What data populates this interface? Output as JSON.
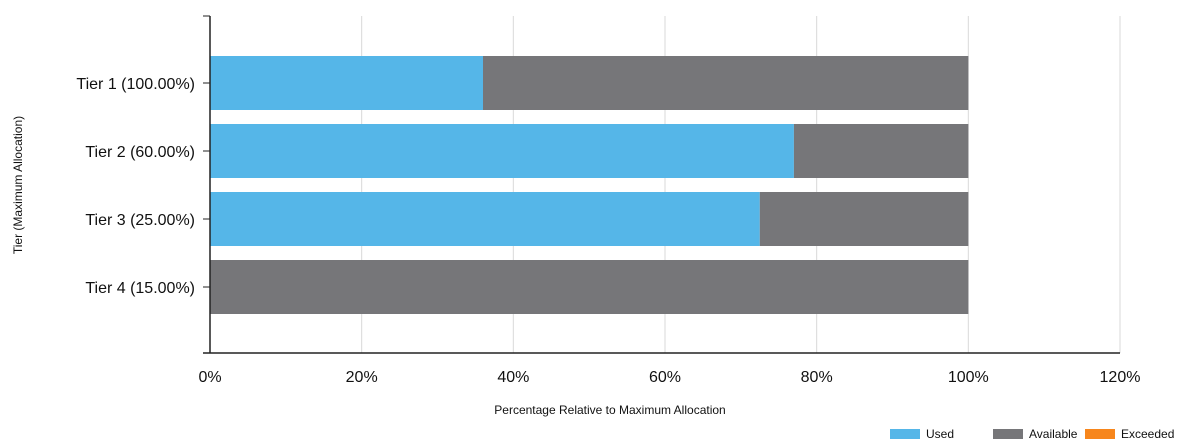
{
  "chart_data": {
    "type": "bar",
    "orientation": "horizontal",
    "stacked": true,
    "categories": [
      "Tier 1 (100.00%)",
      "Tier 2 (60.00%)",
      "Tier 3 (25.00%)",
      "Tier 4 (15.00%)"
    ],
    "series": [
      {
        "name": "Used",
        "values": [
          36,
          77,
          72.5,
          0
        ]
      },
      {
        "name": "Available",
        "values": [
          64,
          23,
          27.5,
          100
        ]
      },
      {
        "name": "Exceeded",
        "values": [
          0,
          0,
          0,
          0
        ]
      }
    ],
    "colors": {
      "Used": "#55b6e8",
      "Available": "#767679",
      "Exceeded": "#f7861c"
    },
    "xlabel": "Percentage Relative to Maximum Allocation",
    "ylabel": "Tier (Maximum Allocation)",
    "xlim": [
      0,
      120
    ],
    "xticks": [
      0,
      20,
      40,
      60,
      80,
      100,
      120
    ],
    "xtick_labels": [
      "0%",
      "20%",
      "40%",
      "60%",
      "80%",
      "100%",
      "120%"
    ],
    "grid": "vertical",
    "legend_position": "bottom-right"
  }
}
